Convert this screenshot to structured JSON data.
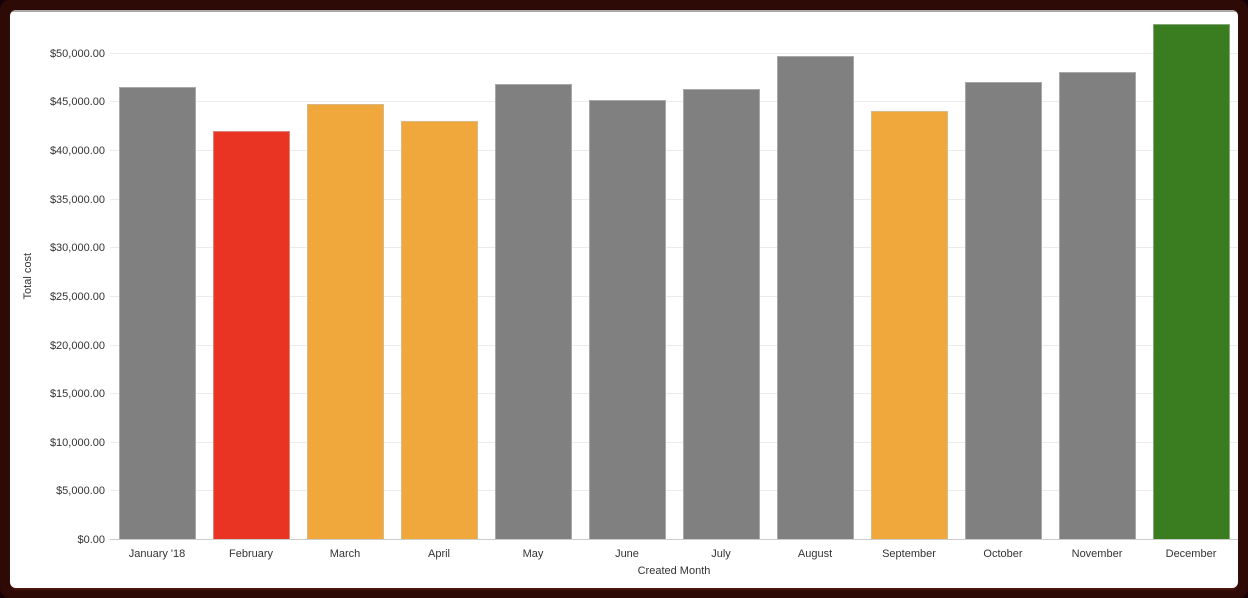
{
  "colors": {
    "frame": "#2e0a06",
    "card_background": "#ffffff",
    "top_rule": "#a9a9a9",
    "gridline": "#ebebeb",
    "axis_line": "#cccccc",
    "axis_text": "#333333",
    "bar_gray": "#808080",
    "bar_red": "#e93323",
    "bar_orange": "#f0a73c",
    "bar_green": "#3a7d21"
  },
  "chart_data": {
    "type": "bar",
    "title": "",
    "xlabel": "Created Month",
    "ylabel": "Total cost",
    "categories": [
      "January '18",
      "February",
      "March",
      "April",
      "May",
      "June",
      "July",
      "August",
      "September",
      "October",
      "November",
      "December"
    ],
    "values": [
      46600,
      42100,
      44800,
      43100,
      46900,
      45300,
      46400,
      49800,
      44100,
      47100,
      48100,
      53100
    ],
    "bar_colors": [
      "#808080",
      "#e93323",
      "#f0a73c",
      "#f0a73c",
      "#808080",
      "#808080",
      "#808080",
      "#808080",
      "#f0a73c",
      "#808080",
      "#808080",
      "#3a7d21"
    ],
    "ylim": [
      0,
      54300
    ],
    "grid": true,
    "legend": "none",
    "y_tick_values": [
      0,
      5000,
      10000,
      15000,
      20000,
      25000,
      30000,
      35000,
      40000,
      45000,
      50000
    ],
    "y_tick_labels": [
      "$0.00",
      "$5,000.00",
      "$10,000.00",
      "$15,000.00",
      "$20,000.00",
      "$25,000.00",
      "$30,000.00",
      "$35,000.00",
      "$40,000.00",
      "$45,000.00",
      "$50,000.00"
    ]
  }
}
